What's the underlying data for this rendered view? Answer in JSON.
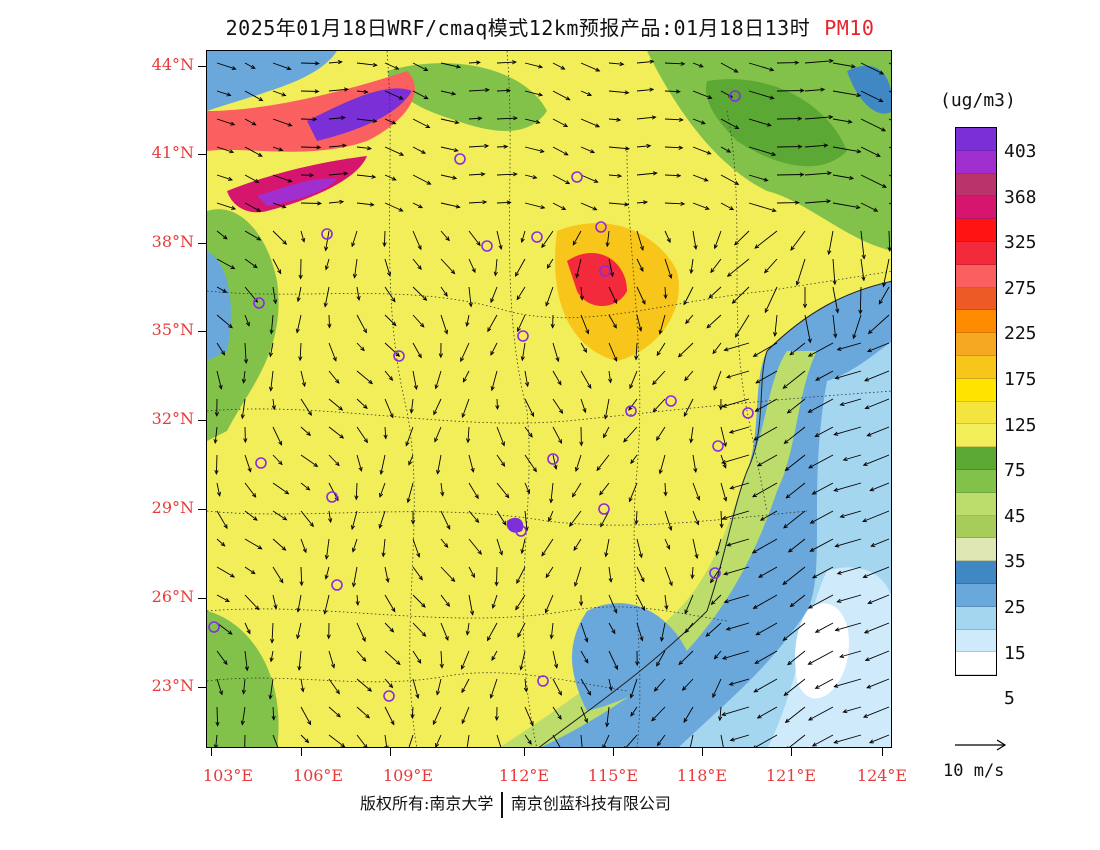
{
  "header": {
    "title": "2025年01月18日WRF/cmaq模式12km预报产品:01月18日13时",
    "product": "PM10"
  },
  "map": {
    "lat_labels": [
      "44°N",
      "41°N",
      "38°N",
      "35°N",
      "32°N",
      "29°N",
      "26°N",
      "23°N"
    ],
    "lon_labels": [
      "103°E",
      "106°E",
      "109°E",
      "112°E",
      "115°E",
      "118°E",
      "121°E",
      "124°E"
    ],
    "city_marker_color": "#8a2be2",
    "vector_color": "#000000"
  },
  "colorbar": {
    "unit": "(ug/m3)",
    "labels": [
      "403",
      "368",
      "325",
      "275",
      "225",
      "175",
      "125",
      "75",
      "45",
      "35",
      "25",
      "15",
      "5"
    ],
    "colors": [
      "#7b2fd6",
      "#a12fd0",
      "#b8346a",
      "#d6166e",
      "#ff1414",
      "#f22a3c",
      "#fa6060",
      "#ee5a25",
      "#ff8c00",
      "#f6a823",
      "#f8c61a",
      "#ffe400",
      "#f4e53e",
      "#f2ee5a",
      "#5ca834",
      "#82c24a",
      "#bcdc6c",
      "#a8cc5a",
      "#dfe8b4",
      "#3f88c4",
      "#6aa8db",
      "#a4d6f0",
      "#cfeafa",
      "#ffffff"
    ],
    "reference_vector_label": "10 m/s"
  },
  "footer": {
    "copyright_left": "版权所有:南京大学",
    "copyright_right": "南京创蓝科技有限公司"
  }
}
